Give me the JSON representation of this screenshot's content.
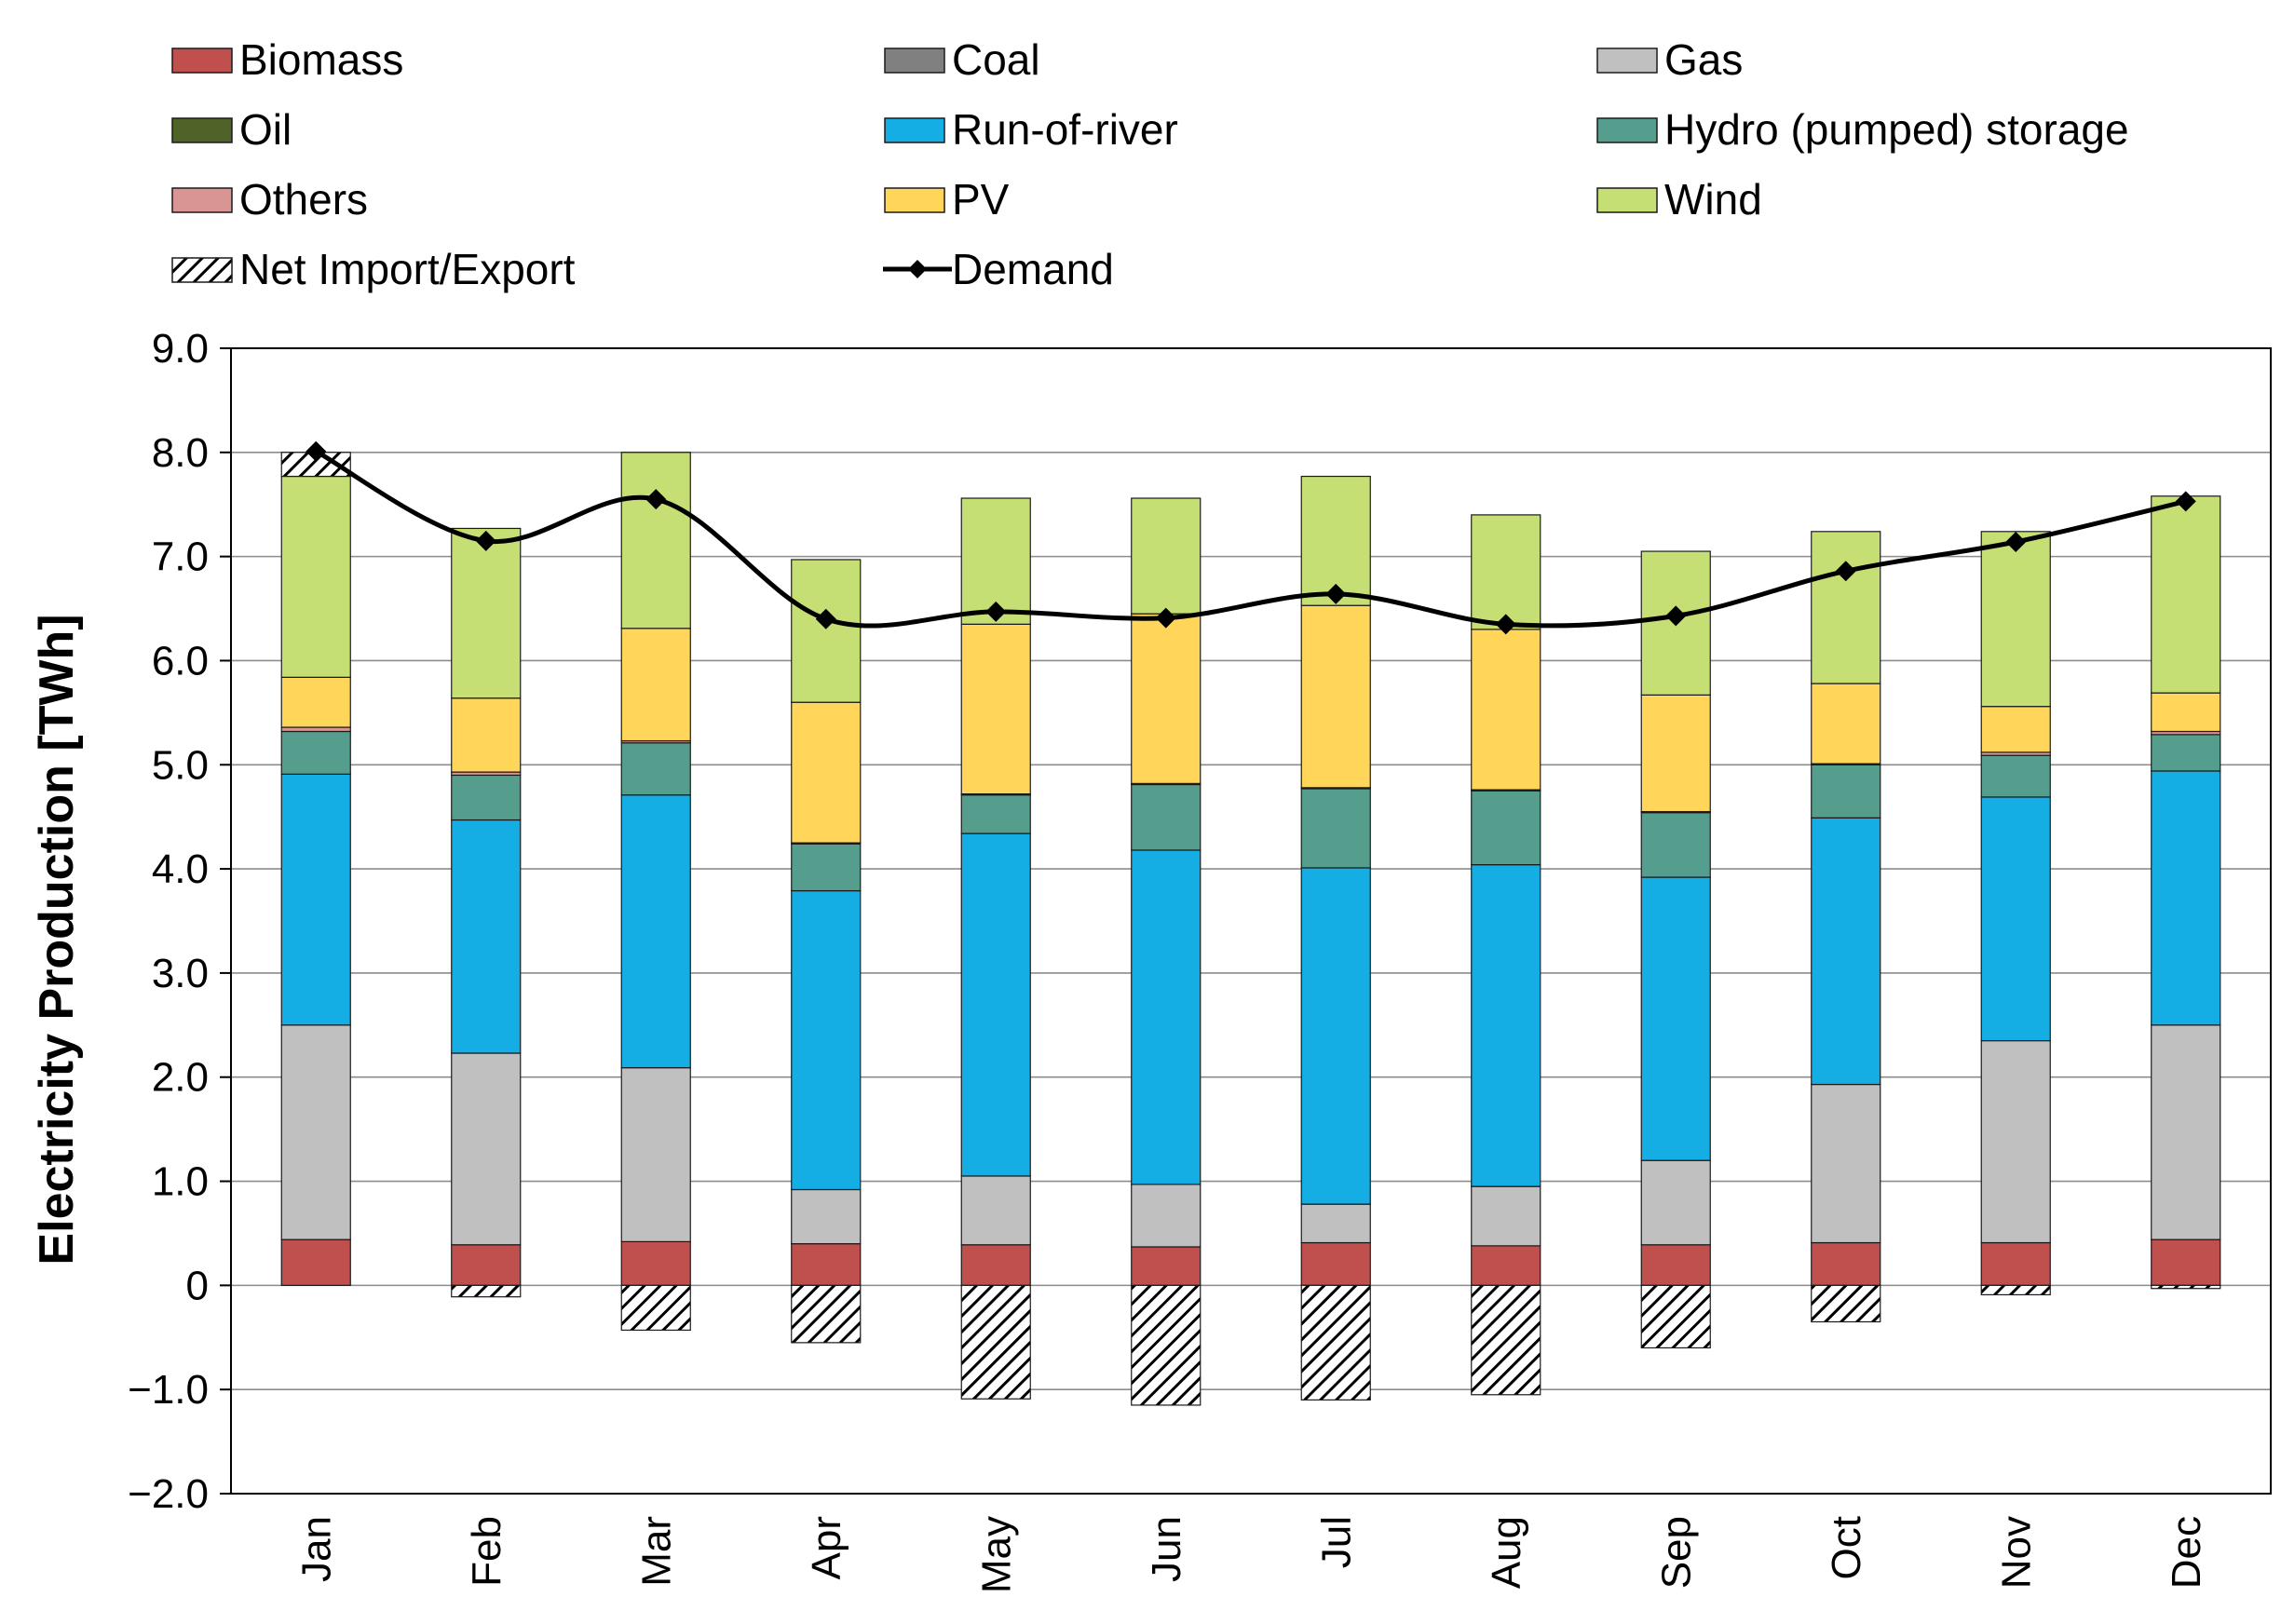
{
  "chart_data": {
    "type": "bar",
    "subtype": "stacked",
    "ylabel": "Electricity Production [TWh]",
    "ylim": [
      -2.0,
      9.0
    ],
    "yticks": [
      "9.0",
      "8.0",
      "7.0",
      "6.0",
      "5.0",
      "4.0",
      "3.0",
      "2.0",
      "1.0",
      "0",
      "−1.0",
      "−2.0"
    ],
    "yticks_values": [
      9,
      8,
      7,
      6,
      5,
      4,
      3,
      2,
      1,
      0,
      -1,
      -2
    ],
    "grid": true,
    "legend_position": "top",
    "categories": [
      "Jan",
      "Feb",
      "Mar",
      "Apr",
      "May",
      "Jun",
      "Jul",
      "Aug",
      "Sep",
      "Oct",
      "Nov",
      "Dec"
    ],
    "series": [
      {
        "name": "Biomass",
        "color": "#c0504d",
        "values": [
          0.44,
          0.39,
          0.42,
          0.4,
          0.39,
          0.37,
          0.41,
          0.38,
          0.39,
          0.41,
          0.41,
          0.44
        ]
      },
      {
        "name": "Coal",
        "color": "#808080",
        "values": [
          0,
          0,
          0,
          0,
          0,
          0,
          0,
          0,
          0,
          0,
          0,
          0
        ]
      },
      {
        "name": "Gas",
        "color": "#c0c0c0",
        "values": [
          2.06,
          1.84,
          1.67,
          0.52,
          0.66,
          0.6,
          0.37,
          0.57,
          0.81,
          1.52,
          1.94,
          2.06
        ]
      },
      {
        "name": "Oil",
        "color": "#4f6228",
        "values": [
          0,
          0,
          0,
          0,
          0,
          0,
          0,
          0,
          0,
          0,
          0,
          0
        ]
      },
      {
        "name": "Run-of-river",
        "color": "#14aee4",
        "values": [
          2.41,
          2.24,
          2.62,
          2.87,
          3.29,
          3.21,
          3.23,
          3.09,
          2.72,
          2.56,
          2.34,
          2.44
        ]
      },
      {
        "name": "Hydro (pumped) storage",
        "color": "#559e8d",
        "values": [
          0.41,
          0.43,
          0.5,
          0.45,
          0.37,
          0.63,
          0.76,
          0.71,
          0.62,
          0.51,
          0.4,
          0.35
        ]
      },
      {
        "name": "Others",
        "color": "#d99594",
        "values": [
          0.04,
          0.03,
          0.02,
          0.01,
          0.01,
          0.01,
          0.01,
          0.01,
          0.01,
          0.01,
          0.03,
          0.03
        ]
      },
      {
        "name": "PV",
        "color": "#ffd55a",
        "values": [
          0.48,
          0.71,
          1.08,
          1.35,
          1.63,
          1.63,
          1.75,
          1.54,
          1.12,
          0.77,
          0.44,
          0.37
        ]
      },
      {
        "name": "Wind",
        "color": "#c6df75",
        "values": [
          1.93,
          1.63,
          1.69,
          1.37,
          1.21,
          1.11,
          1.24,
          1.1,
          1.38,
          1.46,
          1.68,
          1.89
        ]
      },
      {
        "name": "Net Import/Export",
        "color": "hatch",
        "values": [
          0.23,
          -0.11,
          -0.43,
          -0.55,
          -1.09,
          -1.15,
          -1.1,
          -1.05,
          -0.6,
          -0.35,
          -0.09,
          -0.03
        ]
      },
      {
        "name": "Demand",
        "color": "#000000",
        "type": "line",
        "values": [
          8.01,
          7.15,
          7.55,
          6.4,
          6.47,
          6.41,
          6.64,
          6.35,
          6.43,
          6.86,
          7.14,
          7.53
        ]
      }
    ],
    "legend_layout": [
      [
        "Biomass",
        "Coal",
        "Gas"
      ],
      [
        "Oil",
        "Run-of-river",
        "Hydro (pumped) storage"
      ],
      [
        "Others",
        "PV",
        "Wind"
      ],
      [
        "Net Import/Export",
        "Demand"
      ]
    ]
  }
}
